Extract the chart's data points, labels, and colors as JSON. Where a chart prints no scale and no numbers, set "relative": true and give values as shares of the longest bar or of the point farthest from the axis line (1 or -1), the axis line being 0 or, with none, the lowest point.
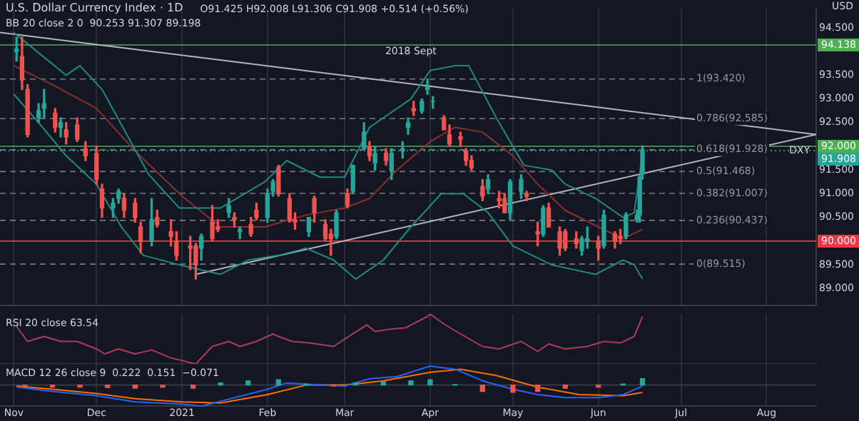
{
  "chart_data": [
    {
      "type": "candlestick",
      "title": "U.S. Dollar Currency Index · 1D",
      "annotations": [
        "O91.425 H92.008 L91.306 C91.908 +0.514 (+0.56%)",
        "BB 20 close 2 0  90.253 91.307 89.198",
        "USD",
        {
          "text": "2018 Sept",
          "x": "2021-03-25",
          "y": 94.0
        },
        {
          "text": "DXY",
          "x": "2021-08-13",
          "y": 91.908
        }
      ],
      "x": [
        "2020-11-02",
        "2020-11-04",
        "2020-11-06",
        "2020-11-10",
        "2020-11-12",
        "2020-11-16",
        "2020-11-18",
        "2020-11-20",
        "2020-11-24",
        "2020-11-27",
        "2020-12-01",
        "2020-12-03",
        "2020-12-07",
        "2020-12-09",
        "2020-12-11",
        "2020-12-15",
        "2020-12-17",
        "2020-12-21",
        "2020-12-23",
        "2020-12-28",
        "2020-12-30",
        "2021-01-04",
        "2021-01-06",
        "2021-01-08",
        "2021-01-12",
        "2021-01-14",
        "2021-01-18",
        "2021-01-20",
        "2021-01-22",
        "2021-01-26",
        "2021-01-28",
        "2021-02-01",
        "2021-02-03",
        "2021-02-05",
        "2021-02-09",
        "2021-02-11",
        "2021-02-16",
        "2021-02-18",
        "2021-02-22",
        "2021-02-24",
        "2021-02-26",
        "2021-03-02",
        "2021-03-04",
        "2021-03-08",
        "2021-03-10",
        "2021-03-12",
        "2021-03-16",
        "2021-03-18",
        "2021-03-22",
        "2021-03-24",
        "2021-03-26",
        "2021-03-29",
        "2021-03-31",
        "2021-04-02",
        "2021-04-06",
        "2021-04-08",
        "2021-04-12",
        "2021-04-14",
        "2021-04-16",
        "2021-04-20",
        "2021-04-22",
        "2021-04-26",
        "2021-04-28",
        "2021-04-30",
        "2021-05-04",
        "2021-05-06",
        "2021-05-10",
        "2021-05-12",
        "2021-05-14",
        "2021-05-18",
        "2021-05-20",
        "2021-05-24",
        "2021-05-26",
        "2021-05-28",
        "2021-06-01",
        "2021-06-03",
        "2021-06-07",
        "2021-06-09",
        "2021-06-11",
        "2021-06-15",
        "2021-06-16",
        "2021-06-17"
      ],
      "ohlc": [
        [
          94.0,
          94.3,
          93.8,
          94.05
        ],
        [
          93.9,
          94.3,
          93.2,
          93.4
        ],
        [
          93.2,
          93.3,
          92.2,
          92.25
        ],
        [
          92.6,
          92.9,
          92.5,
          92.75
        ],
        [
          92.8,
          93.2,
          92.6,
          92.9
        ],
        [
          92.7,
          92.8,
          92.3,
          92.4
        ],
        [
          92.4,
          92.6,
          92.2,
          92.5
        ],
        [
          92.35,
          92.5,
          92.05,
          92.2
        ],
        [
          92.45,
          92.6,
          92.1,
          92.15
        ],
        [
          91.95,
          92.1,
          91.7,
          91.8
        ],
        [
          91.85,
          92.0,
          91.2,
          91.3
        ],
        [
          91.1,
          91.2,
          90.5,
          90.7
        ],
        [
          90.7,
          90.9,
          90.5,
          90.8
        ],
        [
          90.9,
          91.1,
          90.8,
          91.05
        ],
        [
          90.9,
          91.0,
          90.5,
          90.65
        ],
        [
          90.8,
          90.9,
          90.4,
          90.5
        ],
        [
          90.3,
          90.4,
          89.75,
          90.0
        ],
        [
          90.0,
          90.9,
          89.9,
          90.45
        ],
        [
          90.5,
          90.65,
          90.3,
          90.35
        ],
        [
          90.2,
          90.45,
          89.9,
          90.1
        ],
        [
          90.0,
          90.2,
          89.6,
          89.7
        ],
        [
          89.9,
          90.1,
          89.4,
          89.85
        ],
        [
          89.9,
          89.95,
          89.2,
          89.5
        ],
        [
          89.85,
          90.15,
          89.6,
          90.1
        ],
        [
          90.4,
          90.75,
          90.0,
          90.05
        ],
        [
          90.3,
          90.45,
          90.2,
          90.25
        ],
        [
          90.6,
          90.9,
          90.5,
          90.75
        ],
        [
          90.5,
          90.6,
          90.3,
          90.45
        ],
        [
          90.2,
          90.3,
          90.05,
          90.25
        ],
        [
          90.35,
          90.5,
          90.1,
          90.15
        ],
        [
          90.65,
          90.8,
          90.45,
          90.5
        ],
        [
          90.5,
          91.1,
          90.4,
          91.0
        ],
        [
          91.05,
          91.3,
          90.95,
          91.25
        ],
        [
          91.55,
          91.6,
          90.95,
          91.0
        ],
        [
          90.9,
          91.0,
          90.4,
          90.45
        ],
        [
          90.45,
          90.6,
          90.25,
          90.4
        ],
        [
          90.2,
          90.5,
          90.1,
          90.5
        ],
        [
          90.9,
          90.95,
          90.4,
          90.6
        ],
        [
          90.35,
          90.45,
          90.0,
          90.05
        ],
        [
          90.15,
          90.25,
          89.7,
          90.05
        ],
        [
          90.1,
          90.65,
          90.05,
          90.6
        ],
        [
          91.0,
          91.1,
          90.7,
          90.75
        ],
        [
          91.05,
          91.6,
          91.0,
          91.6
        ],
        [
          91.95,
          92.5,
          91.95,
          92.3
        ],
        [
          92.0,
          92.1,
          91.7,
          91.8
        ],
        [
          91.65,
          92.0,
          91.5,
          91.85
        ],
        [
          91.85,
          91.95,
          91.6,
          91.7
        ],
        [
          91.5,
          91.95,
          91.3,
          91.85
        ],
        [
          91.9,
          92.1,
          91.75,
          91.95
        ],
        [
          92.4,
          92.6,
          92.25,
          92.5
        ],
        [
          92.8,
          92.95,
          92.65,
          92.75
        ],
        [
          92.75,
          93.0,
          92.7,
          92.95
        ],
        [
          93.2,
          93.42,
          93.1,
          93.25
        ],
        [
          92.95,
          93.05,
          92.8,
          92.95
        ],
        [
          92.6,
          92.65,
          92.35,
          92.35
        ],
        [
          92.25,
          92.45,
          92.0,
          92.05
        ],
        [
          92.2,
          92.3,
          92.0,
          92.15
        ],
        [
          91.9,
          91.95,
          91.6,
          91.7
        ],
        [
          91.7,
          91.8,
          91.5,
          91.55
        ],
        [
          91.15,
          91.3,
          90.85,
          90.95
        ],
        [
          91.1,
          91.4,
          91.0,
          91.3
        ],
        [
          90.9,
          91.05,
          90.7,
          90.85
        ],
        [
          90.9,
          91.0,
          90.6,
          90.6
        ],
        [
          90.6,
          91.3,
          90.45,
          91.25
        ],
        [
          91.05,
          91.4,
          90.9,
          91.3
        ],
        [
          91.0,
          91.05,
          90.85,
          90.95
        ],
        [
          90.2,
          90.4,
          89.9,
          90.15
        ],
        [
          90.15,
          90.75,
          90.1,
          90.7
        ],
        [
          90.7,
          90.8,
          90.3,
          90.3
        ],
        [
          90.2,
          90.3,
          89.7,
          89.85
        ],
        [
          90.2,
          90.25,
          89.8,
          89.85
        ],
        [
          90.05,
          90.2,
          89.85,
          89.95
        ],
        [
          89.8,
          90.1,
          89.7,
          90.05
        ],
        [
          90.0,
          90.3,
          89.85,
          90.05
        ],
        [
          90.0,
          90.1,
          89.6,
          89.85
        ],
        [
          89.9,
          90.65,
          89.85,
          90.55
        ],
        [
          90.15,
          90.2,
          89.85,
          90.0
        ],
        [
          90.1,
          90.25,
          89.95,
          90.05
        ],
        [
          90.1,
          90.6,
          90.05,
          90.55
        ],
        [
          90.45,
          90.65,
          90.4,
          90.55
        ],
        [
          90.55,
          91.4,
          90.4,
          91.35
        ],
        [
          91.425,
          92.008,
          91.306,
          91.908
        ]
      ],
      "series": [
        {
          "type": "line",
          "color": "#1f8a80",
          "x": [
            "2020-11-01",
            "2020-11-20",
            "2020-11-25",
            "2020-12-03",
            "2020-12-20",
            "2020-12-31",
            "2021-01-15",
            "2021-01-31",
            "2021-02-08",
            "2021-02-20",
            "2021-03-01",
            "2021-03-10",
            "2021-03-25",
            "2021-04-01",
            "2021-04-10",
            "2021-04-15",
            "2021-04-25",
            "2021-05-05",
            "2021-05-15",
            "2021-05-20",
            "2021-05-31",
            "2021-06-10",
            "2021-06-14",
            "2021-06-17"
          ],
          "values": [
            94.4,
            93.5,
            93.7,
            93.2,
            91.4,
            90.7,
            90.7,
            91.25,
            91.7,
            91.35,
            91.35,
            92.4,
            93.0,
            93.6,
            93.7,
            93.7,
            92.6,
            91.6,
            91.5,
            91.2,
            90.9,
            90.5,
            90.6,
            91.85
          ]
        },
        {
          "type": "line",
          "color": "#8b2e2e",
          "x": [
            "2020-11-01",
            "2020-11-15",
            "2020-12-01",
            "2020-12-15",
            "2021-01-01",
            "2021-01-15",
            "2021-01-31",
            "2021-02-15",
            "2021-03-01",
            "2021-03-10",
            "2021-03-20",
            "2021-04-01",
            "2021-04-10",
            "2021-04-20",
            "2021-05-01",
            "2021-05-10",
            "2021-05-20",
            "2021-06-01",
            "2021-06-10",
            "2021-06-17"
          ],
          "values": [
            93.7,
            93.3,
            92.8,
            91.9,
            90.95,
            90.3,
            90.3,
            90.55,
            90.7,
            90.9,
            91.5,
            92.1,
            92.4,
            92.3,
            91.8,
            91.2,
            90.65,
            90.3,
            90.05,
            90.25
          ]
        },
        {
          "type": "line",
          "color": "#1f8a80",
          "x": [
            "2020-11-01",
            "2020-11-10",
            "2020-11-20",
            "2020-12-01",
            "2020-12-10",
            "2020-12-18",
            "2020-12-31",
            "2021-01-15",
            "2021-01-25",
            "2021-02-05",
            "2021-02-15",
            "2021-02-25",
            "2021-03-05",
            "2021-03-15",
            "2021-03-25",
            "2021-04-05",
            "2021-04-13",
            "2021-04-22",
            "2021-05-01",
            "2021-05-15",
            "2021-05-31",
            "2021-06-10",
            "2021-06-14",
            "2021-06-17"
          ],
          "values": [
            93.1,
            92.5,
            91.8,
            91.2,
            90.3,
            89.7,
            89.5,
            89.3,
            89.6,
            89.7,
            89.85,
            89.6,
            89.2,
            89.6,
            90.3,
            91.0,
            91.0,
            90.6,
            89.9,
            89.5,
            89.3,
            89.6,
            89.5,
            89.2
          ]
        },
        {
          "type": "line",
          "color": "#b2b5be",
          "x": [
            "2020-10-27",
            "2021-08-19"
          ],
          "values": [
            94.4,
            92.25
          ]
        },
        {
          "type": "line",
          "color": "#b2b5be",
          "x": [
            "2021-01-06",
            "2021-08-19"
          ],
          "values": [
            89.3,
            92.25
          ]
        }
      ],
      "ref_lines": [
        {
          "axis": "y",
          "value": 94.138,
          "label": "94.138",
          "color": "#4caf50"
        },
        {
          "axis": "y",
          "value": 93.42,
          "label": "1(93.420)",
          "color": "#787b86",
          "line_style": "dashed"
        },
        {
          "axis": "y",
          "value": 92.585,
          "label": "0.786(92.585)",
          "color": "#787b86",
          "line_style": "dashed"
        },
        {
          "axis": "y",
          "value": 92.0,
          "label": "92.000",
          "color": "#4caf50"
        },
        {
          "axis": "y",
          "value": 91.928,
          "label": "0.618(91.928)",
          "color": "#787b86",
          "line_style": "dashed"
        },
        {
          "axis": "y",
          "value": 91.908,
          "label": "91.908",
          "color": "#26a69a",
          "line_style": "dotted"
        },
        {
          "axis": "y",
          "value": 91.468,
          "label": "0.5(91.468)",
          "color": "#787b86",
          "line_style": "dashed"
        },
        {
          "axis": "y",
          "value": 91.007,
          "label": "0.382(91.007)",
          "color": "#787b86",
          "line_style": "dashed"
        },
        {
          "axis": "y",
          "value": 90.437,
          "label": "0.236(90.437)",
          "color": "#787b86",
          "line_style": "dashed"
        },
        {
          "axis": "y",
          "value": 90.0,
          "label": "90.000",
          "color": "#f23645"
        },
        {
          "axis": "y",
          "value": 89.515,
          "label": "0(89.515)",
          "color": "#787b86",
          "line_style": "dashed"
        }
      ],
      "xlim": [
        "2020-10-27",
        "2021-08-19"
      ],
      "xticks": [
        {
          "value": "2020-11-01",
          "label": null
        },
        {
          "value": "2020-12-01",
          "label": null
        },
        {
          "value": "2021-01-01",
          "label": null
        },
        {
          "value": "2021-02-01",
          "label": null
        },
        {
          "value": "2021-03-01",
          "label": null
        },
        {
          "value": "2021-04-01",
          "label": null
        },
        {
          "value": "2021-05-01",
          "label": null
        },
        {
          "value": "2021-06-01",
          "label": null
        },
        {
          "value": "2021-07-01",
          "label": null
        },
        {
          "value": "2021-08-01",
          "label": null
        }
      ],
      "ylim": [
        88.65,
        94.9
      ],
      "yticks": [
        {
          "value": 89.0,
          "label": "89.000"
        },
        {
          "value": 89.5,
          "label": "89.500"
        },
        {
          "value": 90.5,
          "label": "90.500"
        },
        {
          "value": 91.0,
          "label": "91.000"
        },
        {
          "value": 91.5,
          "label": "91.500"
        },
        {
          "value": 92.5,
          "label": "92.500"
        },
        {
          "value": 93.0,
          "label": "93.000"
        },
        {
          "value": 93.5,
          "label": "93.500"
        },
        {
          "value": 94.5,
          "label": "94.500"
        }
      ],
      "tick_labels": "y",
      "grid": "x"
    },
    {
      "type": "line",
      "annotations": [
        "RSI 20 close 63.54"
      ],
      "relative": true,
      "series": [
        {
          "color": "#b03a5b",
          "x": [
            "2020-11-02",
            "2020-11-06",
            "2020-11-12",
            "2020-11-18",
            "2020-11-24",
            "2020-12-01",
            "2020-12-04",
            "2020-12-09",
            "2020-12-15",
            "2020-12-21",
            "2020-12-28",
            "2021-01-06",
            "2021-01-12",
            "2021-01-18",
            "2021-01-22",
            "2021-01-28",
            "2021-02-03",
            "2021-02-05",
            "2021-02-10",
            "2021-02-16",
            "2021-02-25",
            "2021-03-01",
            "2021-03-09",
            "2021-03-12",
            "2021-03-18",
            "2021-03-23",
            "2021-03-31",
            "2021-04-01",
            "2021-04-06",
            "2021-04-12",
            "2021-04-20",
            "2021-04-26",
            "2021-05-04",
            "2021-05-10",
            "2021-05-14",
            "2021-05-20",
            "2021-05-28",
            "2021-06-03",
            "2021-06-09",
            "2021-06-14",
            "2021-06-17"
          ],
          "values": [
            0.75,
            0.45,
            0.55,
            0.45,
            0.45,
            0.3,
            0.2,
            0.3,
            0.2,
            0.28,
            0.12,
            0.0,
            0.35,
            0.45,
            0.35,
            0.45,
            0.6,
            0.55,
            0.45,
            0.42,
            0.35,
            0.5,
            0.78,
            0.65,
            0.7,
            0.72,
            0.95,
            1.0,
            0.8,
            0.6,
            0.35,
            0.3,
            0.45,
            0.25,
            0.4,
            0.3,
            0.35,
            0.45,
            0.42,
            0.55,
            0.95
          ]
        }
      ],
      "xlim": [
        "2020-10-27",
        "2021-08-19"
      ],
      "xticks": [
        {
          "value": "2020-11-01",
          "label": null
        },
        {
          "value": "2020-12-01",
          "label": null
        },
        {
          "value": "2021-01-01",
          "label": null
        },
        {
          "value": "2021-02-01",
          "label": null
        },
        {
          "value": "2021-03-01",
          "label": null
        },
        {
          "value": "2021-04-01",
          "label": null
        },
        {
          "value": "2021-05-01",
          "label": null
        },
        {
          "value": "2021-06-01",
          "label": null
        },
        {
          "value": "2021-07-01",
          "label": null
        },
        {
          "value": "2021-08-01",
          "label": null
        }
      ],
      "tick_labels": false,
      "grid": "x"
    },
    {
      "type": "line",
      "annotations": [
        "MACD 12 26 close 9  0.222  0.151  −0.071"
      ],
      "relative": true,
      "series": [
        {
          "type": "bar",
          "x": [
            "2020-11-05",
            "2020-11-15",
            "2020-11-25",
            "2020-12-05",
            "2020-12-15",
            "2020-12-25",
            "2021-01-05",
            "2021-01-15",
            "2021-01-25",
            "2021-02-05",
            "2021-02-15",
            "2021-02-25",
            "2021-03-05",
            "2021-03-15",
            "2021-03-25",
            "2021-04-01",
            "2021-04-10",
            "2021-04-20",
            "2021-05-01",
            "2021-05-10",
            "2021-05-20",
            "2021-06-01",
            "2021-06-10",
            "2021-06-17"
          ],
          "values": [
            -0.05,
            -0.1,
            -0.1,
            -0.12,
            -0.15,
            -0.1,
            -0.15,
            0.1,
            0.2,
            0.25,
            0.05,
            -0.05,
            0.1,
            0.15,
            0.2,
            0.25,
            0.02,
            -0.3,
            -0.35,
            -0.3,
            -0.15,
            -0.1,
            0.05,
            0.3
          ],
          "colors": [
            "#ef5350",
            "#ef5350",
            "#ef5350",
            "#ef5350",
            "#ef5350",
            "#ef5350",
            "#ef5350",
            "#26a69a",
            "#26a69a",
            "#26a69a",
            "#26a69a",
            "#ef5350",
            "#26a69a",
            "#26a69a",
            "#26a69a",
            "#26a69a",
            "#26a69a",
            "#ef5350",
            "#ef5350",
            "#ef5350",
            "#ef5350",
            "#ef5350",
            "#26a69a",
            "#26a69a"
          ]
        },
        {
          "color": "#2962ff",
          "x": [
            "2020-11-02",
            "2020-11-15",
            "2020-12-01",
            "2020-12-15",
            "2021-01-01",
            "2021-01-08",
            "2021-01-20",
            "2021-02-01",
            "2021-02-08",
            "2021-02-20",
            "2021-03-01",
            "2021-03-10",
            "2021-03-20",
            "2021-04-01",
            "2021-04-10",
            "2021-04-20",
            "2021-05-01",
            "2021-05-10",
            "2021-05-20",
            "2021-06-01",
            "2021-06-10",
            "2021-06-17"
          ],
          "values": [
            -0.1,
            -0.3,
            -0.5,
            -0.8,
            -0.9,
            -1.0,
            -0.6,
            -0.2,
            0.1,
            0.0,
            -0.05,
            0.3,
            0.4,
            0.9,
            0.75,
            0.2,
            -0.2,
            -0.45,
            -0.6,
            -0.6,
            -0.45,
            -0.05
          ]
        },
        {
          "color": "#ff6d00",
          "x": [
            "2020-11-02",
            "2020-11-15",
            "2020-12-01",
            "2020-12-15",
            "2021-01-01",
            "2021-01-15",
            "2021-02-01",
            "2021-02-15",
            "2021-03-01",
            "2021-03-15",
            "2021-04-01",
            "2021-04-12",
            "2021-04-25",
            "2021-05-10",
            "2021-05-25",
            "2021-06-10",
            "2021-06-17"
          ],
          "values": [
            -0.05,
            -0.2,
            -0.4,
            -0.65,
            -0.8,
            -0.85,
            -0.45,
            0.0,
            0.0,
            0.2,
            0.6,
            0.75,
            0.45,
            -0.1,
            -0.45,
            -0.5,
            -0.35
          ]
        }
      ],
      "xlim": [
        "2020-10-27",
        "2021-08-19"
      ],
      "xticks": [
        {
          "value": "2020-11-01",
          "label": "Nov"
        },
        {
          "value": "2020-12-01",
          "label": "Dec"
        },
        {
          "value": "2021-01-01",
          "label": "2021"
        },
        {
          "value": "2021-02-01",
          "label": "Feb"
        },
        {
          "value": "2021-03-01",
          "label": "Mar"
        },
        {
          "value": "2021-04-01",
          "label": "Apr"
        },
        {
          "value": "2021-05-01",
          "label": "May"
        },
        {
          "value": "2021-06-01",
          "label": "Jun"
        },
        {
          "value": "2021-07-01",
          "label": "Jul"
        },
        {
          "value": "2021-08-01",
          "label": "Aug"
        }
      ],
      "tick_labels": "x",
      "grid": "x"
    }
  ]
}
